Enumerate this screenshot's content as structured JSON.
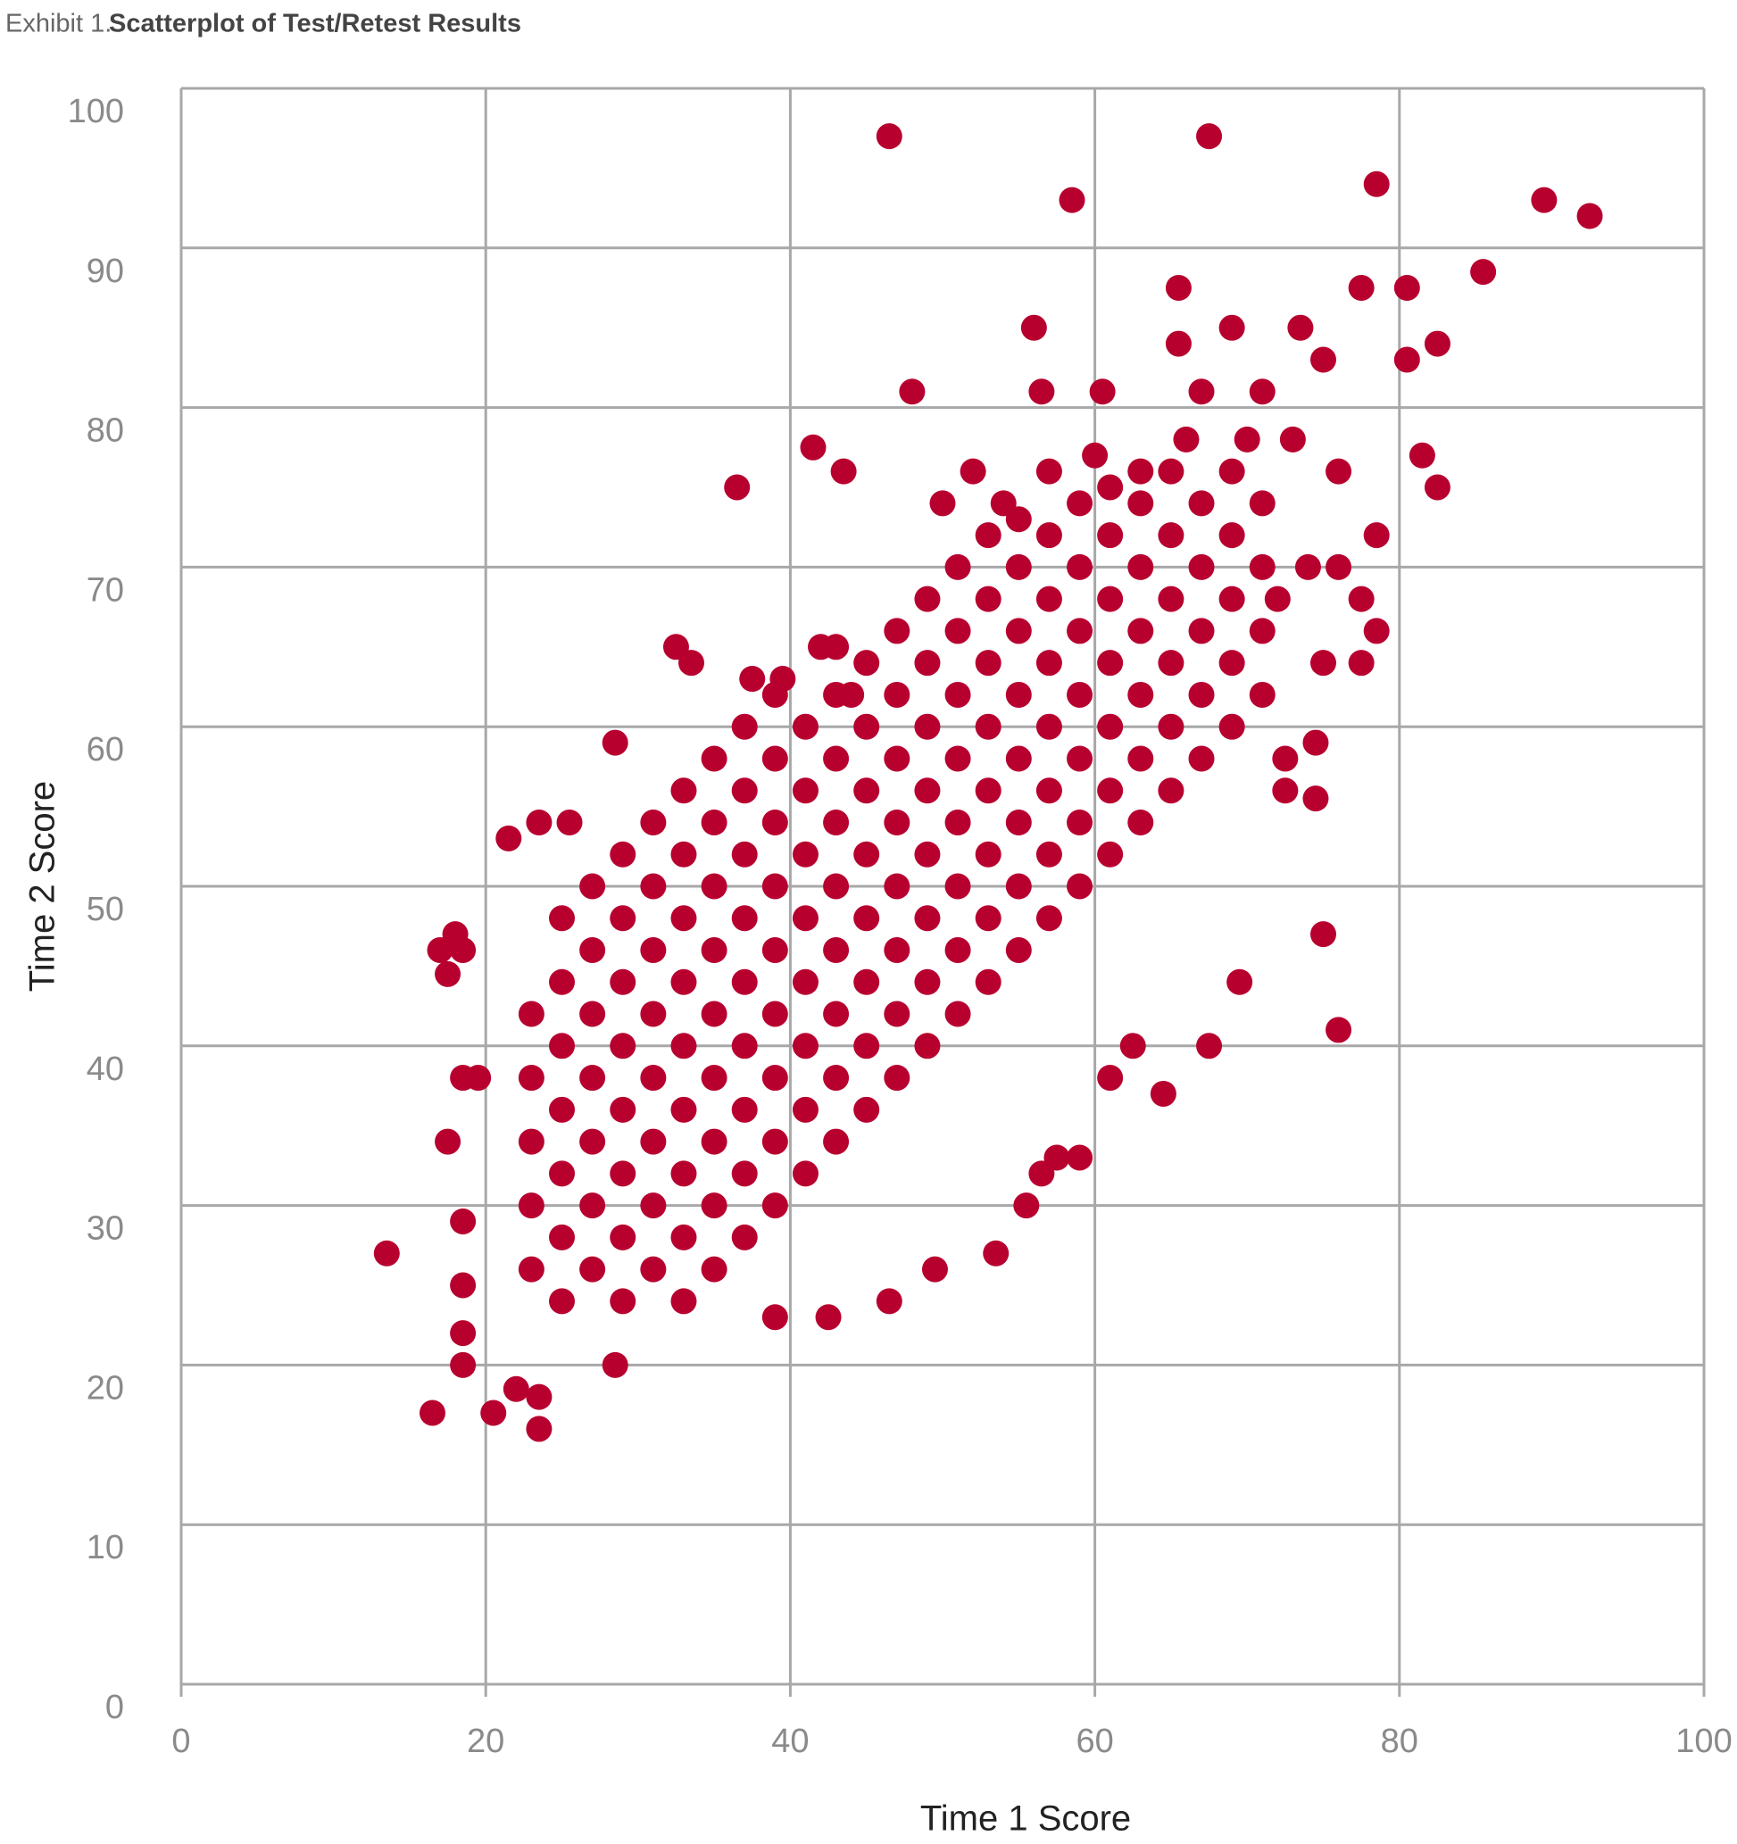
{
  "exhibit": "Exhibit 1.",
  "chart_data": {
    "type": "scatter",
    "title": "Scatterplot of Test/Retest Results",
    "x_label": "Time 1 Score",
    "y_label": "Time 2 Score",
    "xlim": [
      0,
      100
    ],
    "ylim": [
      0,
      100
    ],
    "xticks": [
      0,
      20,
      40,
      60,
      80,
      100
    ],
    "yticks": [
      0,
      10,
      20,
      30,
      40,
      50,
      60,
      70,
      80,
      90,
      100
    ],
    "grid": true,
    "color": "#b8002f",
    "x": [
      23,
      23,
      23,
      23,
      23,
      25,
      25,
      25,
      25,
      25,
      25,
      25,
      27,
      27,
      27,
      27,
      27,
      27,
      27,
      29,
      29,
      29,
      29,
      29,
      29,
      29,
      29,
      31,
      31,
      31,
      31,
      31,
      31,
      31,
      31,
      33,
      33,
      33,
      33,
      33,
      33,
      33,
      33,
      33,
      35,
      35,
      35,
      35,
      35,
      35,
      35,
      35,
      35,
      37,
      37,
      37,
      37,
      37,
      37,
      37,
      37,
      37,
      39,
      39,
      39,
      39,
      39,
      39,
      39,
      39,
      39,
      41,
      41,
      41,
      41,
      41,
      41,
      41,
      41,
      43,
      43,
      43,
      43,
      43,
      43,
      43,
      43,
      43,
      45,
      45,
      45,
      45,
      45,
      45,
      45,
      45,
      47,
      47,
      47,
      47,
      47,
      47,
      47,
      47,
      49,
      49,
      49,
      49,
      49,
      49,
      49,
      49,
      51,
      51,
      51,
      51,
      51,
      51,
      51,
      51,
      53,
      53,
      53,
      53,
      53,
      53,
      53,
      53,
      55,
      55,
      55,
      55,
      55,
      55,
      55,
      55,
      57,
      57,
      57,
      57,
      57,
      57,
      57,
      59,
      59,
      59,
      59,
      59,
      59,
      59,
      61,
      61,
      61,
      61,
      61,
      61,
      61,
      63,
      63,
      63,
      63,
      63,
      63,
      65,
      65,
      65,
      65,
      65,
      65,
      67,
      67,
      67,
      67,
      67,
      69,
      69,
      69,
      69,
      69,
      71,
      71,
      71,
      71,
      46.5,
      67.5,
      58.5,
      78.5,
      89.5,
      92.5,
      85.5,
      65.5,
      77.5,
      80.5,
      56,
      69,
      73.5,
      65.5,
      82.5,
      80.5,
      75,
      48,
      56.5,
      60.5,
      67,
      71,
      41.5,
      43.5,
      36.5,
      81.5,
      82.5,
      78.5,
      78.5,
      77.5,
      77.5,
      13.5,
      16.5,
      20.5,
      23.5,
      23.5,
      22,
      28.5,
      17,
      18.5,
      18,
      17.5,
      21.5,
      23.5,
      25.5,
      28.5,
      75,
      76,
      69.5,
      67.5,
      64.5,
      62.5,
      61,
      53.5,
      49.5,
      46.5,
      39,
      42.5,
      55.5,
      57.5,
      59,
      56.5,
      74.5,
      74.5,
      72.5,
      72.5,
      17.5,
      18.5,
      19.5,
      18.5,
      18.5,
      18.5,
      18.5,
      32.5,
      33.5,
      37.5,
      39.5,
      42,
      44,
      50,
      52,
      54,
      57,
      60,
      63,
      66,
      70,
      73,
      76,
      74,
      76,
      72,
      75
    ],
    "values": [
      26,
      30,
      34,
      38,
      42,
      24,
      28,
      32,
      36,
      40,
      44,
      48,
      26,
      30,
      34,
      38,
      42,
      46,
      50,
      24,
      28,
      32,
      36,
      40,
      44,
      48,
      52,
      26,
      30,
      34,
      38,
      42,
      46,
      50,
      54,
      24,
      28,
      32,
      36,
      40,
      44,
      48,
      52,
      56,
      26,
      30,
      34,
      38,
      42,
      46,
      50,
      54,
      58,
      28,
      32,
      36,
      40,
      44,
      48,
      52,
      56,
      60,
      30,
      34,
      38,
      42,
      46,
      50,
      54,
      58,
      62,
      32,
      36,
      40,
      44,
      48,
      52,
      56,
      60,
      34,
      38,
      42,
      46,
      50,
      54,
      58,
      62,
      65,
      36,
      40,
      44,
      48,
      52,
      56,
      60,
      64,
      38,
      42,
      46,
      50,
      54,
      58,
      62,
      66,
      40,
      44,
      48,
      52,
      56,
      60,
      64,
      68,
      42,
      46,
      50,
      54,
      58,
      62,
      66,
      70,
      44,
      48,
      52,
      56,
      60,
      64,
      68,
      72,
      46,
      50,
      54,
      58,
      62,
      66,
      70,
      73,
      48,
      52,
      56,
      60,
      64,
      68,
      72,
      50,
      54,
      58,
      62,
      66,
      70,
      74,
      52,
      56,
      60,
      64,
      68,
      72,
      75,
      54,
      58,
      62,
      66,
      70,
      74,
      56,
      60,
      64,
      68,
      72,
      76,
      58,
      62,
      66,
      70,
      74,
      60,
      64,
      68,
      72,
      76,
      62,
      66,
      70,
      74,
      97,
      97,
      93,
      94,
      93,
      92,
      88.5,
      87.5,
      87.5,
      87.5,
      85,
      85,
      85,
      84,
      84,
      83,
      83,
      81,
      81,
      81,
      81,
      81,
      77.5,
      76,
      75,
      77,
      75,
      72,
      66,
      68,
      64,
      27,
      17,
      17,
      16,
      18,
      18.5,
      20,
      46,
      46,
      47,
      44.5,
      53,
      54,
      54,
      59,
      47,
      41,
      44,
      40,
      37,
      40,
      38,
      27,
      26,
      24,
      23,
      23,
      30,
      33,
      33,
      32,
      59,
      55.5,
      56,
      58,
      34,
      38,
      38,
      29,
      25,
      22,
      20,
      65,
      64,
      63,
      63,
      65,
      62,
      74,
      76,
      74,
      76,
      77,
      76,
      78,
      78,
      78,
      76,
      70,
      70,
      68,
      64
    ]
  }
}
